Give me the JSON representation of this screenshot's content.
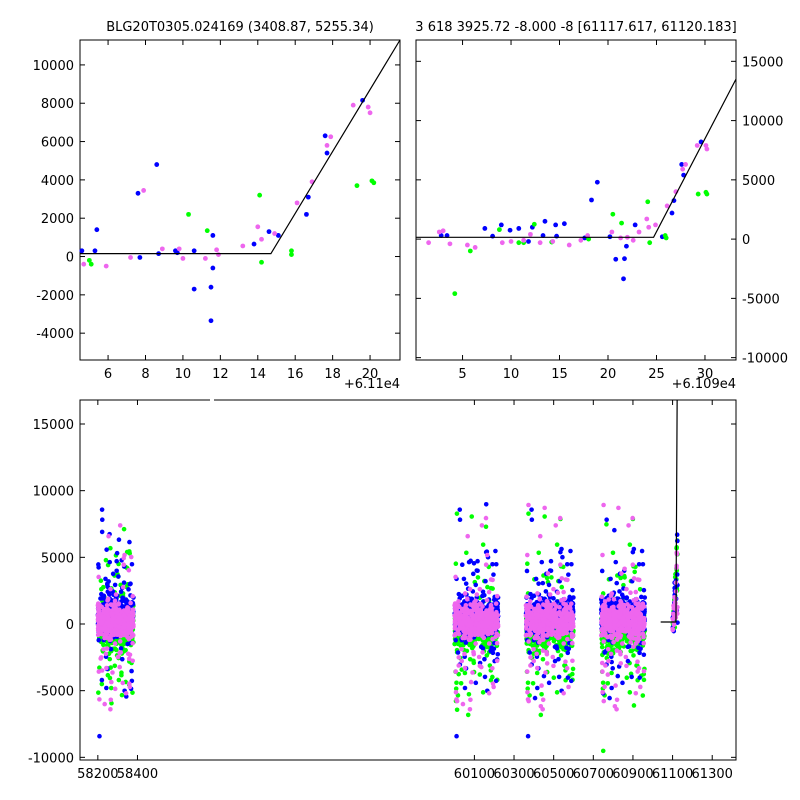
{
  "colors": {
    "blue": "#0000ff",
    "green": "#00ff00",
    "magenta": "#ee66ee",
    "line": "#000000"
  },
  "chart_data": [
    {
      "id": "top-left",
      "type": "scatter",
      "title": "BLG20T0305.024169 (3408.87, 5255.34)",
      "offset_label": "+6.11e4",
      "xlim": [
        4.5,
        21.6
      ],
      "ylim": [
        -5400,
        11300
      ],
      "xticks": [
        6,
        8,
        10,
        12,
        14,
        16,
        18,
        20
      ],
      "yticks": [
        -4000,
        -2000,
        0,
        2000,
        4000,
        6000,
        8000,
        10000
      ],
      "ytick_side": "left",
      "model": [
        [
          4.5,
          150
        ],
        [
          14.7,
          150
        ],
        [
          21.6,
          11300
        ]
      ],
      "series": [
        {
          "name": "blue",
          "color": "blue",
          "points": [
            [
              4.6,
              300
            ],
            [
              5.4,
              1400
            ],
            [
              5.3,
              300
            ],
            [
              7.6,
              3300
            ],
            [
              7.7,
              -50
            ],
            [
              8.6,
              4800
            ],
            [
              8.7,
              150
            ],
            [
              9.6,
              300
            ],
            [
              9.7,
              200
            ],
            [
              10.6,
              300
            ],
            [
              10.6,
              -1700
            ],
            [
              11.5,
              -1600
            ],
            [
              11.5,
              -3350
            ],
            [
              11.6,
              -600
            ],
            [
              11.6,
              1100
            ],
            [
              13.8,
              650
            ],
            [
              14.6,
              1300
            ],
            [
              15.1,
              1100
            ],
            [
              16.6,
              2200
            ],
            [
              16.7,
              3100
            ],
            [
              17.6,
              6300
            ],
            [
              17.7,
              5400
            ],
            [
              19.6,
              8150
            ]
          ]
        },
        {
          "name": "green",
          "color": "green",
          "points": [
            [
              5.0,
              -200
            ],
            [
              5.1,
              -400
            ],
            [
              10.3,
              2200
            ],
            [
              11.3,
              1350
            ],
            [
              14.1,
              3200
            ],
            [
              14.2,
              -300
            ],
            [
              15.8,
              100
            ],
            [
              15.8,
              300
            ],
            [
              19.3,
              3700
            ],
            [
              20.1,
              3950
            ],
            [
              20.2,
              3850
            ]
          ]
        },
        {
          "name": "magenta",
          "color": "magenta",
          "points": [
            [
              4.7,
              -400
            ],
            [
              5.9,
              -500
            ],
            [
              7.2,
              -50
            ],
            [
              7.9,
              3450
            ],
            [
              8.9,
              400
            ],
            [
              9.8,
              400
            ],
            [
              10.0,
              -100
            ],
            [
              11.2,
              -100
            ],
            [
              11.9,
              100
            ],
            [
              11.8,
              350
            ],
            [
              13.2,
              550
            ],
            [
              14.0,
              1550
            ],
            [
              14.2,
              900
            ],
            [
              14.9,
              1200
            ],
            [
              16.1,
              2800
            ],
            [
              16.9,
              3900
            ],
            [
              17.7,
              5800
            ],
            [
              17.9,
              6250
            ],
            [
              19.1,
              7900
            ],
            [
              19.9,
              7800
            ],
            [
              20.0,
              7500
            ]
          ]
        }
      ]
    },
    {
      "id": "top-right",
      "type": "scatter",
      "title": "3 618 3925.72 -8.000 -8 [61117.617, 61120.183]",
      "offset_label": "+6.109e4",
      "xlim": [
        0.2,
        33.2
      ],
      "ylim": [
        -10200,
        16800
      ],
      "xticks": [
        5,
        10,
        15,
        20,
        25,
        30
      ],
      "yticks": [
        -10000,
        -5000,
        0,
        5000,
        10000,
        15000
      ],
      "ytick_side": "right",
      "model": [
        [
          0.2,
          150
        ],
        [
          24.7,
          150
        ],
        [
          33.2,
          13500
        ]
      ],
      "series": [
        {
          "name": "blue",
          "color": "blue",
          "points": [
            [
              2.8,
              300
            ],
            [
              3.4,
              300
            ],
            [
              7.3,
              900
            ],
            [
              8.1,
              250
            ],
            [
              9.0,
              1200
            ],
            [
              9.9,
              750
            ],
            [
              10.8,
              900
            ],
            [
              11.8,
              -200
            ],
            [
              12.2,
              1000
            ],
            [
              13.3,
              300
            ],
            [
              13.5,
              1500
            ],
            [
              14.6,
              1200
            ],
            [
              14.7,
              250
            ],
            [
              15.5,
              1300
            ],
            [
              17.6,
              100
            ],
            [
              18.3,
              3300
            ],
            [
              18.9,
              4800
            ],
            [
              20.2,
              200
            ],
            [
              20.8,
              -1700
            ],
            [
              21.7,
              -1650
            ],
            [
              21.6,
              -3350
            ],
            [
              21.9,
              -600
            ],
            [
              22.8,
              1200
            ],
            [
              25.6,
              200
            ],
            [
              26.6,
              2200
            ],
            [
              26.8,
              3250
            ],
            [
              27.6,
              6300
            ],
            [
              27.8,
              5400
            ],
            [
              29.6,
              8200
            ]
          ]
        },
        {
          "name": "green",
          "color": "green",
          "points": [
            [
              4.2,
              -4600
            ],
            [
              5.8,
              -1000
            ],
            [
              8.8,
              800
            ],
            [
              10.8,
              -300
            ],
            [
              11.3,
              -300
            ],
            [
              12.4,
              1250
            ],
            [
              14.2,
              -250
            ],
            [
              18.0,
              0
            ],
            [
              20.5,
              2100
            ],
            [
              21.4,
              1350
            ],
            [
              24.1,
              3150
            ],
            [
              24.3,
              -300
            ],
            [
              26.0,
              100
            ],
            [
              25.9,
              300
            ],
            [
              29.3,
              3800
            ],
            [
              30.1,
              3950
            ],
            [
              30.2,
              3800
            ]
          ]
        },
        {
          "name": "magenta",
          "color": "magenta",
          "points": [
            [
              1.5,
              -300
            ],
            [
              2.6,
              600
            ],
            [
              3.0,
              700
            ],
            [
              3.7,
              -400
            ],
            [
              5.5,
              -500
            ],
            [
              6.3,
              -700
            ],
            [
              9.1,
              -300
            ],
            [
              10.0,
              -200
            ],
            [
              11.3,
              -100
            ],
            [
              12.0,
              400
            ],
            [
              13.0,
              -300
            ],
            [
              14.3,
              -200
            ],
            [
              16.0,
              -500
            ],
            [
              17.2,
              -100
            ],
            [
              17.9,
              300
            ],
            [
              20.4,
              600
            ],
            [
              21.3,
              100
            ],
            [
              22.0,
              150
            ],
            [
              22.6,
              -100
            ],
            [
              23.2,
              600
            ],
            [
              24.0,
              1700
            ],
            [
              24.2,
              1000
            ],
            [
              24.9,
              1200
            ],
            [
              26.1,
              2800
            ],
            [
              27.0,
              4000
            ],
            [
              27.7,
              5900
            ],
            [
              28.0,
              6300
            ],
            [
              29.2,
              7900
            ],
            [
              30.1,
              7900
            ],
            [
              30.2,
              7600
            ]
          ]
        }
      ]
    },
    {
      "id": "bottom",
      "type": "scatter",
      "title": "",
      "xlim": [
        58110,
        61420
      ],
      "ylim": [
        -10200,
        16800
      ],
      "xticks": [
        58200,
        58400,
        60100,
        60300,
        60500,
        60700,
        60900,
        61100,
        61300
      ],
      "yticks": [
        -10000,
        -5000,
        0,
        5000,
        10000,
        15000
      ],
      "ytick_side": "left",
      "seasons": [
        [
          58200,
          58380
        ],
        [
          60000,
          60220
        ],
        [
          60360,
          60600
        ],
        [
          60740,
          60960
        ],
        [
          61100,
          61125
        ]
      ],
      "model": [
        [
          61040,
          150
        ],
        [
          61117,
          150
        ],
        [
          61123,
          16800
        ]
      ]
    }
  ]
}
